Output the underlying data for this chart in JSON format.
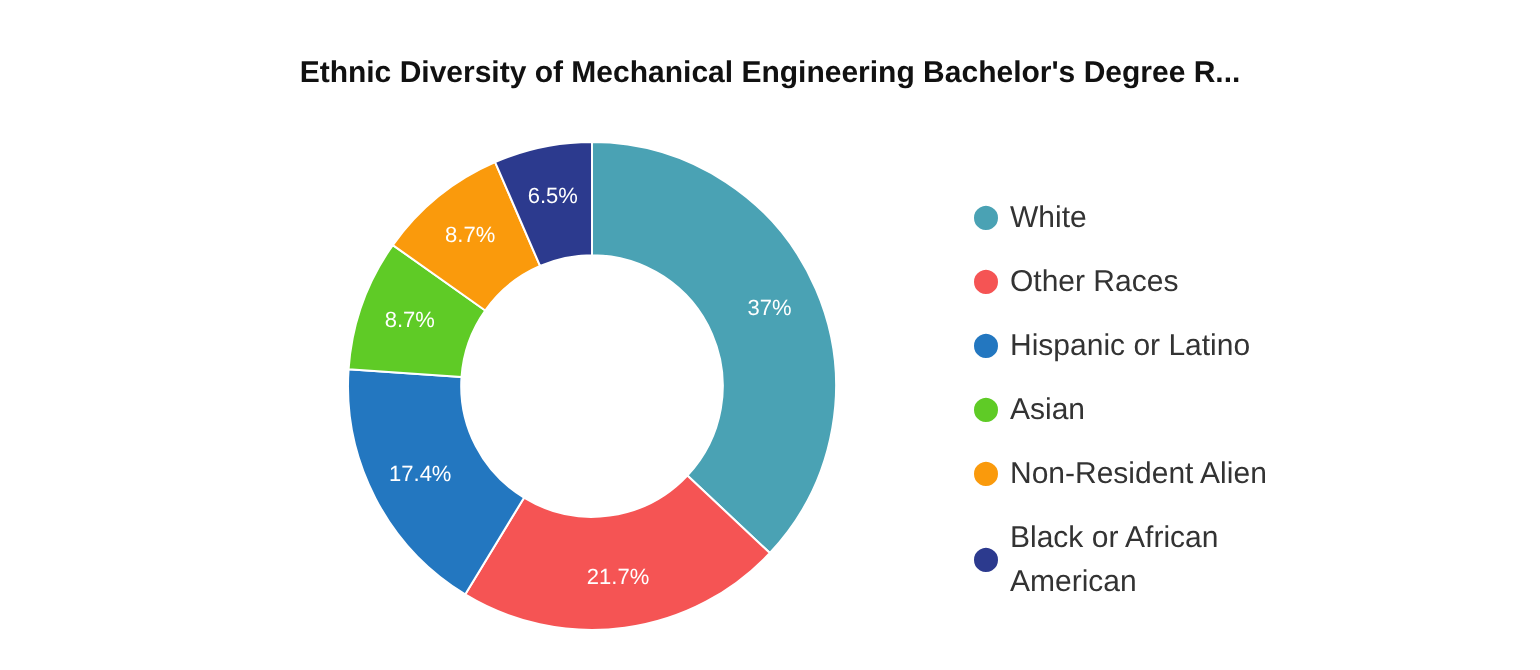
{
  "chart_data": {
    "type": "donut",
    "title": "Ethnic Diversity of Mechanical Engineering Bachelor's Degree R...",
    "categories": [
      "White",
      "Other Races",
      "Hispanic or Latino",
      "Asian",
      "Non-Resident Alien",
      "Black or African American"
    ],
    "values": [
      37,
      21.7,
      17.4,
      8.7,
      8.7,
      6.5
    ],
    "colors": [
      "#4aa2b4",
      "#f55454",
      "#2377c0",
      "#5fcb26",
      "#fa9a0c",
      "#2c3a8e"
    ],
    "value_labels": [
      "37%",
      "21.7%",
      "17.4%",
      "8.7%",
      "8.7%",
      "6.5%"
    ],
    "legend": "right"
  }
}
